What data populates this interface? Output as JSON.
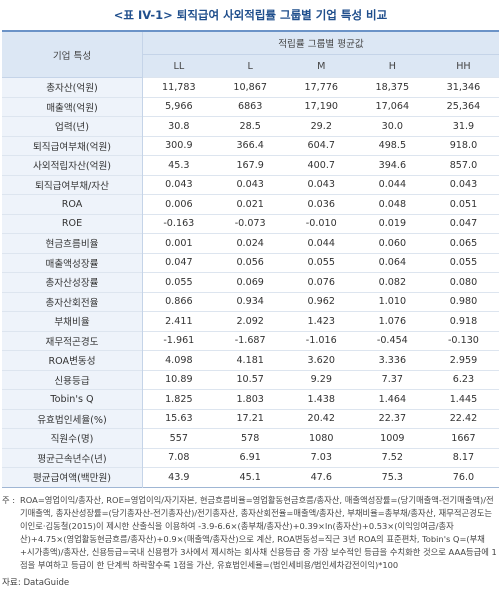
{
  "title": "<표 IV-1> 퇴직급여 사외적립률 그룹별 기업 특성 비교",
  "table": {
    "header": {
      "feature": "기업 특성",
      "group": "적립률 그룹별 평균값",
      "columns": [
        "LL",
        "L",
        "M",
        "H",
        "HH"
      ]
    },
    "rows": [
      [
        "총자산(억원)",
        "11,783",
        "10,867",
        "17,776",
        "18,375",
        "31,346"
      ],
      [
        "매출액(억원)",
        "5,966",
        "6863",
        "17,190",
        "17,064",
        "25,364"
      ],
      [
        "업력(년)",
        "30.8",
        "28.5",
        "29.2",
        "30.0",
        "31.9"
      ],
      [
        "퇴직급여부채(억원)",
        "300.9",
        "366.4",
        "604.7",
        "498.5",
        "918.0"
      ],
      [
        "사외적립자산(억원)",
        "45.3",
        "167.9",
        "400.7",
        "394.6",
        "857.0"
      ],
      [
        "퇴직급여부채/자산",
        "0.043",
        "0.043",
        "0.043",
        "0.044",
        "0.043"
      ],
      [
        "ROA",
        "0.006",
        "0.021",
        "0.036",
        "0.048",
        "0.051"
      ],
      [
        "ROE",
        "-0.163",
        "-0.073",
        "-0.010",
        "0.019",
        "0.047"
      ],
      [
        "현금흐름비율",
        "0.001",
        "0.024",
        "0.044",
        "0.060",
        "0.065"
      ],
      [
        "매출액성장률",
        "0.047",
        "0.056",
        "0.055",
        "0.064",
        "0.055"
      ],
      [
        "총자산성장률",
        "0.055",
        "0.069",
        "0.076",
        "0.082",
        "0.080"
      ],
      [
        "총자산회전율",
        "0.866",
        "0.934",
        "0.962",
        "1.010",
        "0.980"
      ],
      [
        "부채비율",
        "2.411",
        "2.092",
        "1.423",
        "1.076",
        "0.918"
      ],
      [
        "재무적곤경도",
        "-1.961",
        "-1.687",
        "-1.016",
        "-0.454",
        "-0.130"
      ],
      [
        "ROA변동성",
        "4.098",
        "4.181",
        "3.620",
        "3.336",
        "2.959"
      ],
      [
        "신용등급",
        "10.89",
        "10.57",
        "9.29",
        "7.37",
        "6.23"
      ],
      [
        "Tobin's Q",
        "1.825",
        "1.803",
        "1.438",
        "1.464",
        "1.445"
      ],
      [
        "유효법인세율(%)",
        "15.63",
        "17.21",
        "20.42",
        "22.37",
        "22.42"
      ],
      [
        "직원수(명)",
        "557",
        "578",
        "1080",
        "1009",
        "1667"
      ],
      [
        "평균근속년수(년)",
        "7.08",
        "6.91",
        "7.03",
        "7.52",
        "8.17"
      ],
      [
        "평균급여액(백만원)",
        "43.9",
        "45.1",
        "47.6",
        "75.3",
        "76.0"
      ]
    ]
  },
  "note": {
    "label": "주 :",
    "text": "ROA=영업이익/총자산, ROE=영업이익/자기자본, 현금흐름비율=영업활동현금흐름/총자산, 매출액성장률=(당기매출액-전기매출액)/전기매출액, 총자산성장률=(당기총자산-전기총자산)/전기총자산, 총자산회전율=매출액/총자산, 부채비율=총부채/총자산, 재무적곤경도는 이인로·김동철(2015)이 제시한 산출식을 이용하여 -3.9-6.6×(총부채/총자산)+0.39×ln(총자산)+0.53×(이익잉여금/총자산)+4.75×(영업활동현금흐름/총자산)+0.9×(매출액/총자산)으로 계산, ROA변동성=직근 3년 ROA의 표준편차, Tobin's Q=(부채+시가총액)/총자산, 신용등급=국내 신용평가 3사에서 제시하는 회사채 신용등급 중 가장 보수적인 등급을 수치화한 것으로 AAA등급에 1점을 부여하고 등급이 한 단계씩 하락할수록 1점을 가산, 유효법인세율=(법인세비용/법인세차감전이익)*100"
  },
  "source": "자료: DataGuide"
}
